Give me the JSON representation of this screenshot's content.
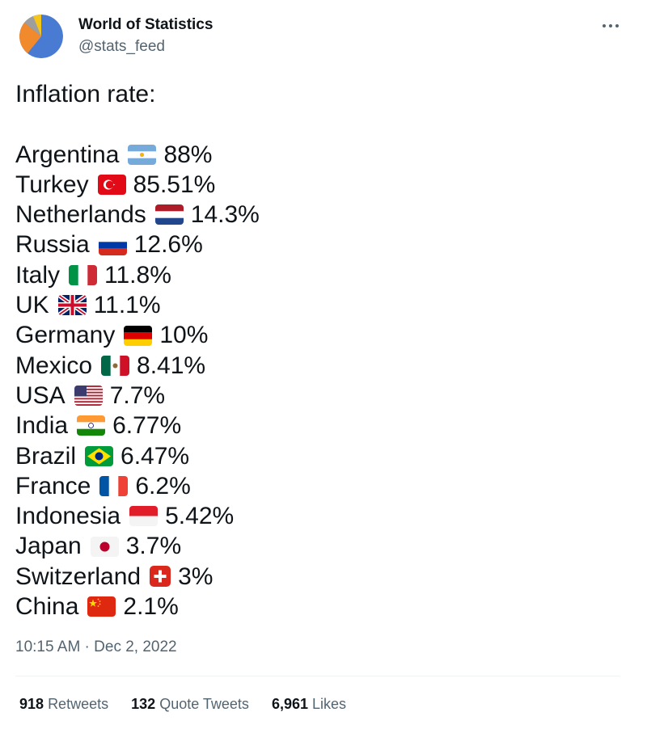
{
  "user": {
    "display_name": "World of Statistics",
    "handle": "@stats_feed",
    "more_icon": "more-horizontal-icon"
  },
  "tweet": {
    "heading": "Inflation rate:",
    "items": [
      {
        "country": "Argentina",
        "flag": "argentina-flag-icon",
        "rate": "88%"
      },
      {
        "country": "Turkey",
        "flag": "turkey-flag-icon",
        "rate": "85.51%"
      },
      {
        "country": "Netherlands",
        "flag": "netherlands-flag-icon",
        "rate": "14.3%"
      },
      {
        "country": "Russia",
        "flag": "russia-flag-icon",
        "rate": "12.6%"
      },
      {
        "country": "Italy",
        "flag": "italy-flag-icon",
        "rate": "11.8%"
      },
      {
        "country": "UK",
        "flag": "uk-flag-icon",
        "rate": "11.1%"
      },
      {
        "country": "Germany",
        "flag": "germany-flag-icon",
        "rate": "10%"
      },
      {
        "country": "Mexico",
        "flag": "mexico-flag-icon",
        "rate": "8.41%"
      },
      {
        "country": "USA",
        "flag": "usa-flag-icon",
        "rate": "7.7%"
      },
      {
        "country": "India",
        "flag": "india-flag-icon",
        "rate": "6.77%"
      },
      {
        "country": "Brazil",
        "flag": "brazil-flag-icon",
        "rate": "6.47%"
      },
      {
        "country": "France",
        "flag": "france-flag-icon",
        "rate": "6.2%"
      },
      {
        "country": "Indonesia",
        "flag": "indonesia-flag-icon",
        "rate": "5.42%"
      },
      {
        "country": "Japan",
        "flag": "japan-flag-icon",
        "rate": "3.7%"
      },
      {
        "country": "Switzerland",
        "flag": "switzerland-flag-icon",
        "rate": "3%"
      },
      {
        "country": "China",
        "flag": "china-flag-icon",
        "rate": "2.1%"
      }
    ],
    "timestamp": "10:15 AM · Dec 2, 2022"
  },
  "stats": {
    "retweets_count": "918",
    "retweets_label": "Retweets",
    "quotes_count": "132",
    "quotes_label": "Quote Tweets",
    "likes_count": "6,961",
    "likes_label": "Likes"
  },
  "colors": {
    "text": "#0f1419",
    "secondary": "#536471",
    "divider": "#eff3f4"
  }
}
